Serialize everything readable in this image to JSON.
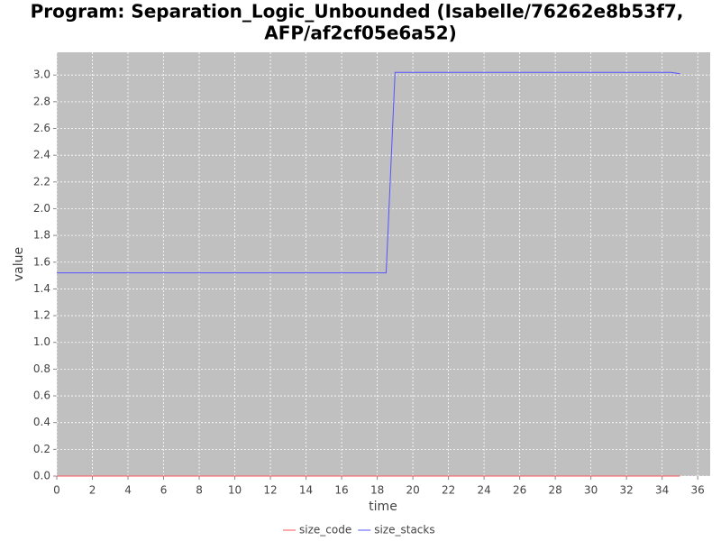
{
  "chart_data": {
    "type": "line",
    "title": [
      "Program: Separation_Logic_Unbounded (Isabelle/76262e8b53f7,",
      "AFP/af2cf05e6a52)"
    ],
    "x_label": "time",
    "y_label": "value",
    "x": [
      0,
      18.5,
      19.0,
      34.5,
      35.0
    ],
    "series": [
      {
        "name": "size_code",
        "color": "#ff5555",
        "values": [
          0,
          0,
          0,
          0,
          0
        ]
      },
      {
        "name": "size_stacks",
        "color": "#5555ff",
        "values": [
          1.52,
          1.52,
          3.02,
          3.02,
          3.01
        ]
      }
    ],
    "xlim": [
      0,
      36.7
    ],
    "ylim": [
      0,
      3.17
    ],
    "xticks": [
      0,
      2,
      4,
      6,
      8,
      10,
      12,
      14,
      16,
      18,
      20,
      22,
      24,
      26,
      28,
      30,
      32,
      34,
      36
    ],
    "yticks": [
      {
        "value": 0,
        "label": "0.0"
      },
      0.2,
      0.4,
      0.6,
      0.8,
      {
        "value": 1,
        "label": "1.0"
      },
      1.2,
      1.4,
      1.6,
      1.8,
      {
        "value": 2,
        "label": "2.0"
      },
      2.2,
      2.4,
      2.6,
      2.8,
      {
        "value": 3,
        "label": "3.0"
      }
    ],
    "grid": true,
    "legend": "bottom"
  }
}
